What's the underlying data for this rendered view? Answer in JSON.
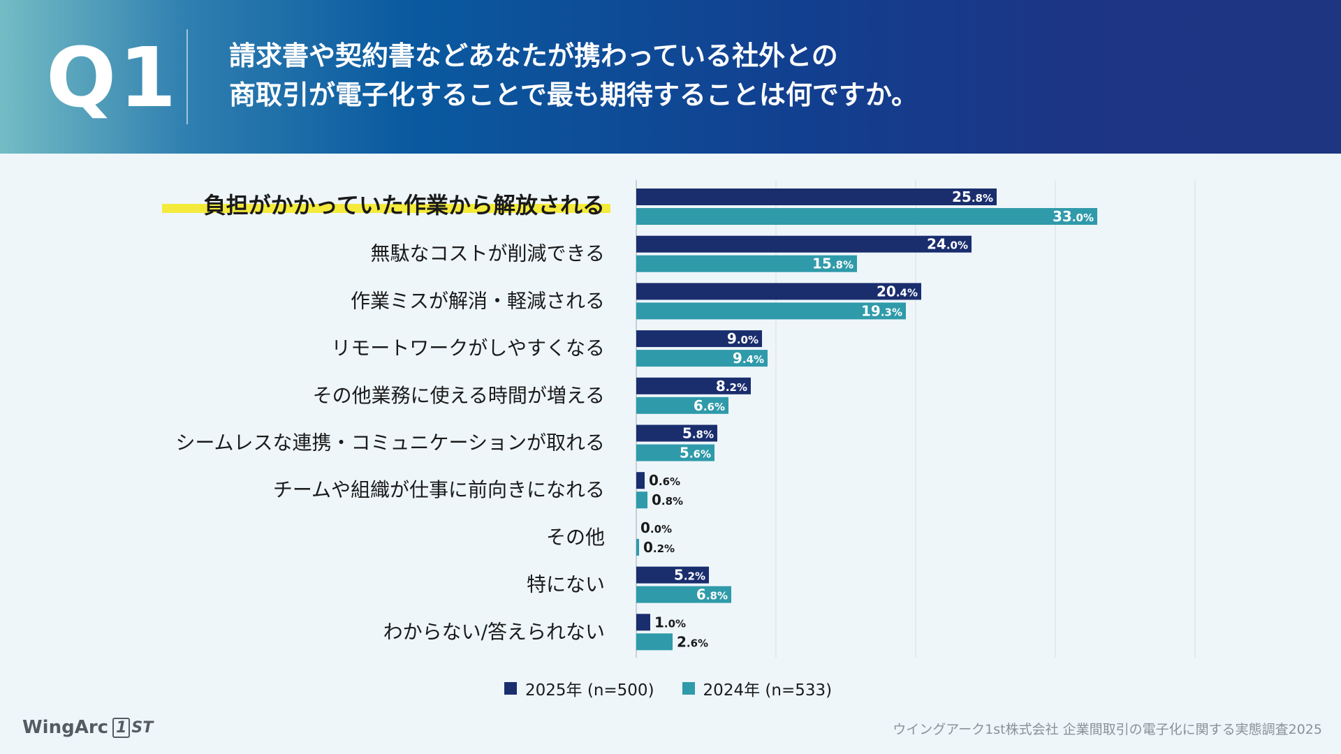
{
  "header": {
    "q_label": "Q1",
    "question_line1": "請求書や契約書などあなたが携わっている社外との",
    "question_line2": "商取引が電子化することで最も期待することは何ですか。"
  },
  "colors": {
    "series_2025": "#1a2e6e",
    "series_2024": "#2f9aaa",
    "highlight": "#f4ea3c"
  },
  "chart_data": {
    "type": "bar",
    "orientation": "horizontal",
    "categories": [
      "負担がかかっていた作業から解放される",
      "無駄なコストが削減できる",
      "作業ミスが解消・軽減される",
      "リモートワークがしやすくなる",
      "その他業務に使える時間が増える",
      "シームレスな連携・コミュニケーションが取れる",
      "チームや組織が仕事に前向きになれる",
      "その他",
      "特にない",
      "わからない/答えられない"
    ],
    "highlighted_category": 0,
    "series": [
      {
        "name": "2025年 (n=500)",
        "values": [
          25.8,
          24.0,
          20.4,
          9.0,
          8.2,
          5.8,
          0.6,
          0.0,
          5.2,
          1.0
        ]
      },
      {
        "name": "2024年 (n=533)",
        "values": [
          33.0,
          15.8,
          19.3,
          9.4,
          6.6,
          5.6,
          0.8,
          0.2,
          6.8,
          2.6
        ]
      }
    ],
    "value_suffix": "%",
    "xlim": [
      0,
      40
    ],
    "grid": true,
    "legend": "bottom"
  },
  "footer": {
    "logo_text": "WingArc",
    "logo_one": "1",
    "logo_st": "ST",
    "source": "ウイングアーク1st株式会社 企業間取引の電子化に関する実態調査2025"
  }
}
